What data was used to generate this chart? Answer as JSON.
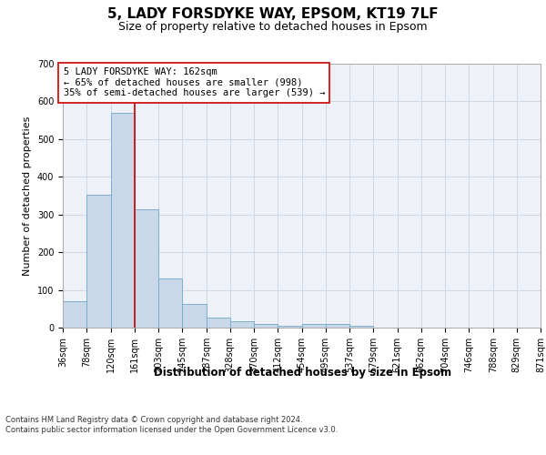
{
  "title_line1": "5, LADY FORSDYKE WAY, EPSOM, KT19 7LF",
  "title_line2": "Size of property relative to detached houses in Epsom",
  "xlabel": "Distribution of detached houses by size in Epsom",
  "ylabel": "Number of detached properties",
  "bin_labels": [
    "36sqm",
    "78sqm",
    "120sqm",
    "161sqm",
    "203sqm",
    "245sqm",
    "287sqm",
    "328sqm",
    "370sqm",
    "412sqm",
    "454sqm",
    "495sqm",
    "537sqm",
    "579sqm",
    "621sqm",
    "662sqm",
    "704sqm",
    "746sqm",
    "788sqm",
    "829sqm",
    "871sqm"
  ],
  "bar_values": [
    70,
    352,
    570,
    314,
    130,
    63,
    27,
    17,
    10,
    5,
    9,
    10,
    5,
    0,
    0,
    0,
    0,
    0,
    0,
    0
  ],
  "bar_color": "#c8d8e8",
  "bar_edge_color": "#6fa8c8",
  "grid_color": "#d0d8e8",
  "background_color": "#eef2f8",
  "vline_x": 162,
  "vline_color": "#cc0000",
  "bin_edges": [
    36,
    78,
    120,
    161,
    203,
    245,
    287,
    328,
    370,
    412,
    454,
    495,
    537,
    579,
    621,
    662,
    704,
    746,
    788,
    829,
    871
  ],
  "annotation_text": "5 LADY FORSDYKE WAY: 162sqm\n← 65% of detached houses are smaller (998)\n35% of semi-detached houses are larger (539) →",
  "annotation_box_color": "#ffffff",
  "annotation_box_edge": "#cc0000",
  "ylim": [
    0,
    700
  ],
  "yticks": [
    0,
    100,
    200,
    300,
    400,
    500,
    600,
    700
  ],
  "footer_text": "Contains HM Land Registry data © Crown copyright and database right 2024.\nContains public sector information licensed under the Open Government Licence v3.0.",
  "title_fontsize": 11,
  "subtitle_fontsize": 9,
  "axis_label_fontsize": 8,
  "tick_fontsize": 7,
  "annotation_fontsize": 7.5,
  "footer_fontsize": 6
}
